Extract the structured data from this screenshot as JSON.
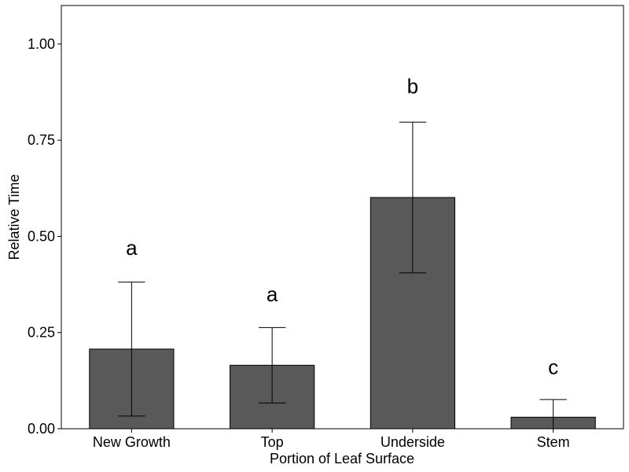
{
  "chart_data": {
    "type": "bar",
    "title": "",
    "xlabel": "Portion of Leaf Surface",
    "ylabel": "Relative Time",
    "categories": [
      "New Growth",
      "Top",
      "Underside",
      "Stem"
    ],
    "values": [
      0.207,
      0.165,
      0.601,
      0.03
    ],
    "error_upper": [
      0.381,
      0.263,
      0.797,
      0.076
    ],
    "error_lower": [
      0.033,
      0.067,
      0.405,
      0.0
    ],
    "significance_labels": [
      "a",
      "a",
      "b",
      "c"
    ],
    "significance_y": [
      0.47,
      0.35,
      0.89,
      0.16
    ],
    "ylim": [
      0,
      1.1
    ],
    "yticks": [
      0.0,
      0.25,
      0.5,
      0.75,
      1.0
    ],
    "ytick_labels": [
      "0.00",
      "0.25",
      "0.50",
      "0.75",
      "1.00"
    ],
    "grid": false,
    "bar_color": "#595959",
    "bar_edge_color": "#000000"
  }
}
